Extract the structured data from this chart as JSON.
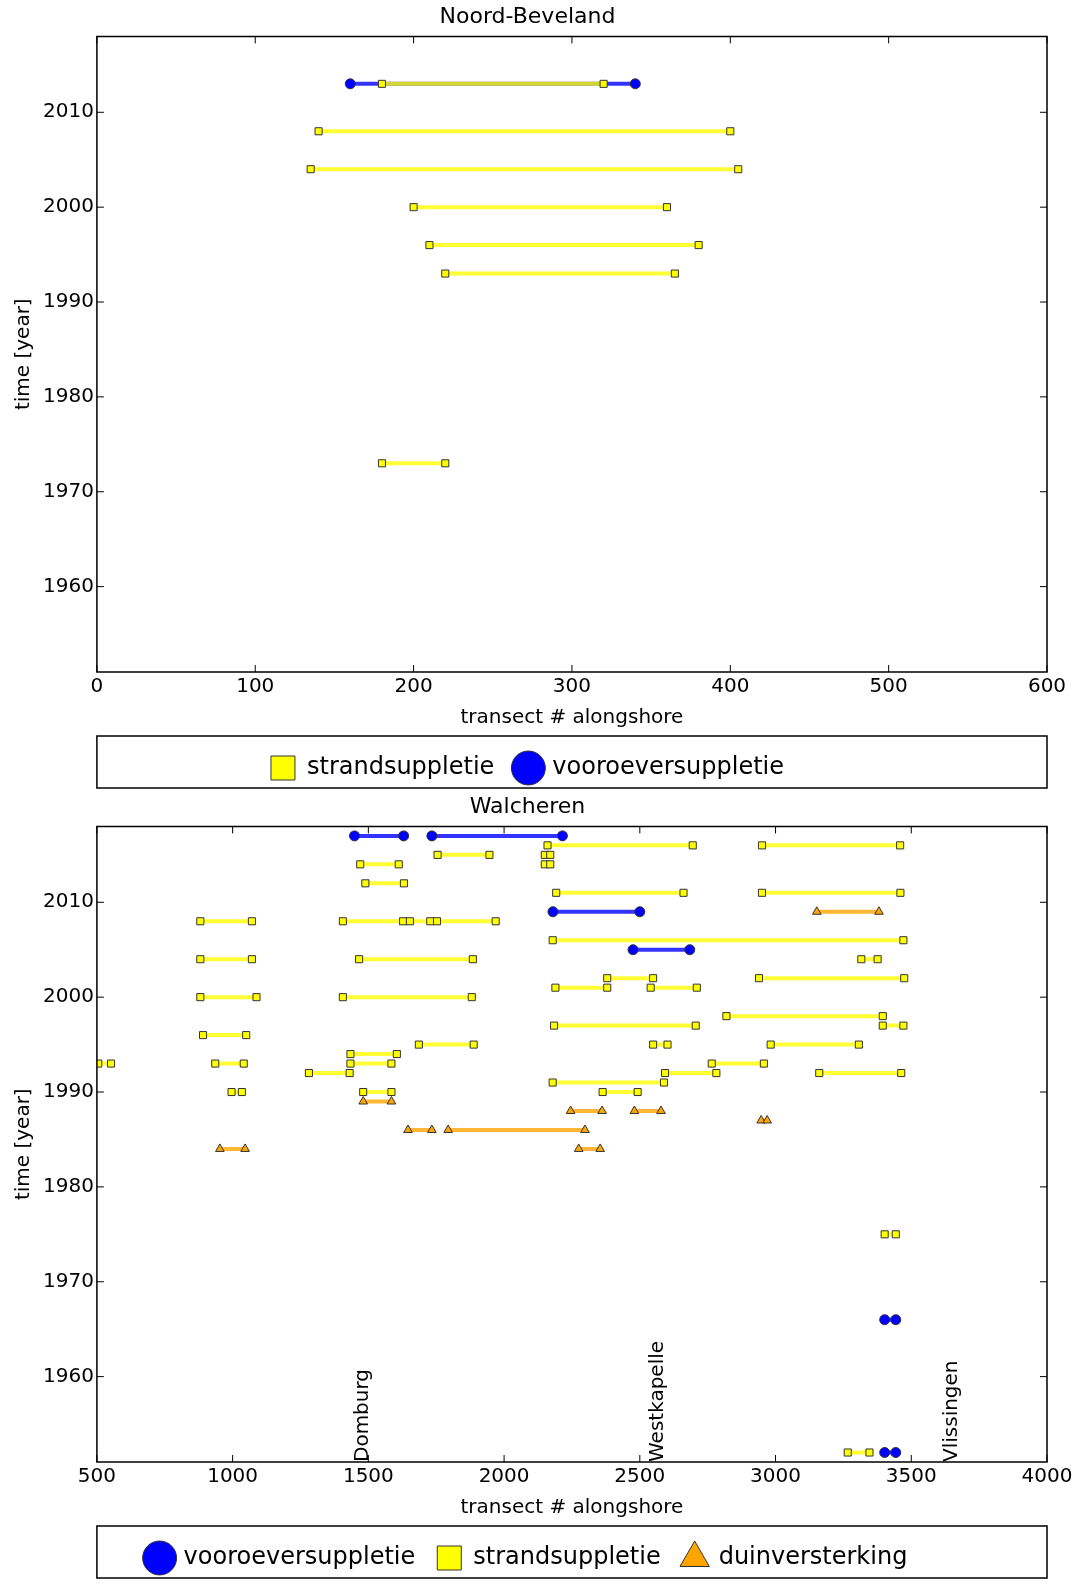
{
  "chart_data": [
    {
      "type": "line",
      "title": "Noord-Beveland",
      "xlabel": "transect # alongshore",
      "ylabel": "time [year]",
      "xlim": [
        0,
        600
      ],
      "xticks": [
        0,
        100,
        200,
        300,
        400,
        500,
        600
      ],
      "ylim": [
        1951,
        2018
      ],
      "yticks": [
        1960,
        1970,
        1980,
        1990,
        2000,
        2010
      ],
      "grid": false,
      "legend": "bottom",
      "series": [
        {
          "name": "strandsuppletie",
          "color": "#ffff00",
          "marker": "square",
          "x": [
            180,
            320
          ],
          "values": [
            2013,
            2013
          ]
        },
        {
          "color": "#ffff00",
          "marker": "square",
          "x": [
            140,
            400
          ],
          "values": [
            2008,
            2008
          ]
        },
        {
          "color": "#ffff00",
          "marker": "square",
          "x": [
            135,
            405
          ],
          "values": [
            2004,
            2004
          ]
        },
        {
          "color": "#ffff00",
          "marker": "square",
          "x": [
            200,
            360
          ],
          "values": [
            2000,
            2000
          ]
        },
        {
          "color": "#ffff00",
          "marker": "square",
          "x": [
            210,
            380
          ],
          "values": [
            1996,
            1996
          ]
        },
        {
          "color": "#ffff00",
          "marker": "square",
          "x": [
            220,
            365
          ],
          "values": [
            1993,
            1993
          ]
        },
        {
          "color": "#ffff00",
          "marker": "square",
          "x": [
            180,
            220
          ],
          "values": [
            1973,
            1973
          ]
        },
        {
          "name": "vooroeversuppletie",
          "color": "#0000ff",
          "marker": "circle",
          "x": [
            160,
            340
          ],
          "values": [
            2013,
            2013
          ]
        }
      ]
    },
    {
      "type": "line",
      "title": "Walcheren",
      "xlabel": "transect # alongshore",
      "ylabel": "time [year]",
      "xlim": [
        500,
        4000
      ],
      "xticks": [
        500,
        1000,
        1500,
        2000,
        2500,
        3000,
        3500,
        4000
      ],
      "ylim": [
        1951,
        2018
      ],
      "yticks": [
        1960,
        1970,
        1980,
        1990,
        2000,
        2010
      ],
      "grid": false,
      "legend": "bottom",
      "series": [
        {
          "name": "vooroeversuppletie",
          "color": "#0000ff",
          "marker": "circle",
          "x": [
            1449,
            1630,
            null,
            1734,
            2215
          ],
          "values": [
            2017,
            2017,
            null,
            2017,
            2017
          ]
        },
        {
          "color": "#0000ff",
          "marker": "circle",
          "x": [
            2180,
            2500
          ],
          "values": [
            2009,
            2009
          ]
        },
        {
          "color": "#0000ff",
          "marker": "circle",
          "x": [
            2475,
            2684
          ],
          "values": [
            2005,
            2005
          ]
        },
        {
          "color": "#0000ff",
          "marker": "circle",
          "x": [
            3402,
            3443
          ],
          "values": [
            1966,
            1966
          ]
        },
        {
          "color": "#0000ff",
          "marker": "circle",
          "x": [
            3402,
            3443
          ],
          "values": [
            1952,
            1952
          ]
        },
        {
          "name": "strandsuppletie",
          "color": "#ffff00",
          "marker": "square",
          "x": [
            2160,
            2695,
            null,
            2950,
            3459
          ],
          "values": [
            2016,
            2016,
            null,
            2016,
            2016
          ]
        },
        {
          "color": "#ffff00",
          "marker": "square",
          "x": [
            1755,
            1946,
            null,
            2150,
            2170
          ],
          "values": [
            2015,
            2015,
            null,
            2015,
            2015
          ]
        },
        {
          "color": "#ffff00",
          "marker": "square",
          "x": [
            1470,
            1612,
            null,
            2150,
            2170
          ],
          "values": [
            2014,
            2014,
            null,
            2014,
            2014
          ]
        },
        {
          "color": "#ffff00",
          "marker": "square",
          "x": [
            1489,
            1631
          ],
          "values": [
            2012,
            2012
          ]
        },
        {
          "color": "#ffff00",
          "marker": "square",
          "x": [
            2192,
            2661,
            null,
            2950,
            3460
          ],
          "values": [
            2011,
            2011,
            null,
            2011,
            2011
          ]
        },
        {
          "color": "#ffff00",
          "marker": "square",
          "x": [
            881,
            1071,
            null,
            1406,
            1628,
            null,
            1653,
            1728,
            null,
            1753,
            1969
          ],
          "values": [
            2008,
            2008,
            null,
            2008,
            2008,
            null,
            2008,
            2008,
            null,
            2008,
            2008
          ]
        },
        {
          "color": "#ffff00",
          "marker": "square",
          "x": [
            2179,
            3471
          ],
          "values": [
            2006,
            2006
          ]
        },
        {
          "color": "#ffff00",
          "marker": "square",
          "x": [
            881,
            1071,
            null,
            1466,
            1885,
            null,
            3316,
            3376
          ],
          "values": [
            2004,
            2004,
            null,
            2004,
            2004,
            null,
            2004,
            2004
          ]
        },
        {
          "color": "#ffff00",
          "marker": "square",
          "x": [
            2380,
            2549,
            null,
            2939,
            3474
          ],
          "values": [
            2002,
            2002,
            null,
            2002,
            2002
          ]
        },
        {
          "color": "#ffff00",
          "marker": "square",
          "x": [
            2189,
            2380,
            null,
            2540,
            2710
          ],
          "values": [
            2001,
            2001,
            null,
            2001,
            2001
          ]
        },
        {
          "color": "#ffff00",
          "marker": "square",
          "x": [
            881,
            1088,
            null,
            1406,
            1881
          ],
          "values": [
            2000,
            2000,
            null,
            2000,
            2000
          ]
        },
        {
          "color": "#ffff00",
          "marker": "square",
          "x": [
            2819,
            3395
          ],
          "values": [
            1998,
            1998
          ]
        },
        {
          "color": "#ffff00",
          "marker": "square",
          "x": [
            2184,
            2706,
            null,
            3395,
            3471
          ],
          "values": [
            1997,
            1997,
            null,
            1997,
            1997
          ]
        },
        {
          "color": "#ffff00",
          "marker": "square",
          "x": [
            891,
            1050
          ],
          "values": [
            1996,
            1996
          ]
        },
        {
          "color": "#ffff00",
          "marker": "square",
          "x": [
            1686,
            1888,
            null,
            2549,
            2602,
            null,
            2982,
            3307
          ],
          "values": [
            1995,
            1995,
            null,
            1995,
            1995,
            null,
            1995,
            1995
          ]
        },
        {
          "color": "#ffff00",
          "marker": "square",
          "x": [
            1434,
            1605
          ],
          "values": [
            1994,
            1994
          ]
        },
        {
          "color": "#ffff00",
          "marker": "square",
          "x": [
            505,
            552,
            null,
            936,
            1041,
            null,
            1434,
            1585,
            null,
            2765,
            2957
          ],
          "values": [
            1993,
            1993,
            null,
            1993,
            1993,
            null,
            1993,
            1993,
            null,
            1993,
            1993
          ]
        },
        {
          "color": "#ffff00",
          "marker": "square",
          "x": [
            1281,
            1431,
            null,
            2593,
            2782,
            null,
            3161,
            3463
          ],
          "values": [
            1992,
            1992,
            null,
            1992,
            1992,
            null,
            1992,
            1992
          ]
        },
        {
          "color": "#ffff00",
          "marker": "square",
          "x": [
            2179,
            2589
          ],
          "values": [
            1991,
            1991
          ]
        },
        {
          "color": "#ffff00",
          "marker": "square",
          "x": [
            996,
            1034,
            null,
            1481,
            1585,
            null,
            2363,
            2492
          ],
          "values": [
            1990,
            1990,
            null,
            1990,
            1990,
            null,
            1990,
            1990
          ]
        },
        {
          "color": "#ffff00",
          "marker": "square",
          "x": [
            3402,
            3443
          ],
          "values": [
            1975,
            1975
          ]
        },
        {
          "color": "#ffff00",
          "marker": "square",
          "x": [
            3266,
            3346
          ],
          "values": [
            1952,
            1952
          ]
        },
        {
          "name": "duinversterking",
          "color": "#ffa500",
          "marker": "triangle",
          "x": [
            3152,
            3381
          ],
          "values": [
            2009,
            2009
          ]
        },
        {
          "color": "#ffa500",
          "marker": "triangle",
          "x": [
            1481,
            1585
          ],
          "values": [
            1989,
            1989
          ]
        },
        {
          "color": "#ffa500",
          "marker": "triangle",
          "x": [
            2245,
            2361,
            null,
            2480,
            2578
          ],
          "values": [
            1988,
            1988,
            null,
            1988,
            1988
          ]
        },
        {
          "color": "#ffa500",
          "marker": "triangle",
          "x": [
            2947,
            2969
          ],
          "values": [
            1987,
            1987
          ]
        },
        {
          "color": "#ffa500",
          "marker": "triangle",
          "x": [
            1646,
            1734,
            null,
            1794,
            2298
          ],
          "values": [
            1986,
            1986,
            null,
            1986,
            1986
          ]
        },
        {
          "color": "#ffa500",
          "marker": "triangle",
          "x": [
            953,
            1046,
            null,
            2275,
            2354
          ],
          "values": [
            1984,
            1984,
            null,
            1984,
            1984
          ]
        }
      ],
      "annotations": [
        "Domburg",
        "Westkapelle",
        "Vlissingen"
      ]
    }
  ]
}
